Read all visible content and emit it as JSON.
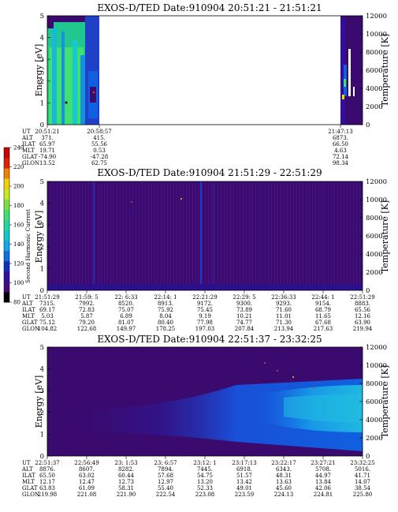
{
  "colors": {
    "background": "#3a0a6e",
    "cold": [
      "#3a0a6e",
      "#2c0f8c",
      "#1c3ac8",
      "#1060e0",
      "#12a0e8",
      "#18c8d0",
      "#20d890",
      "#40e070"
    ],
    "colorbar": [
      "#000000",
      "#4a0880",
      "#3010a0",
      "#1030c0",
      "#1070e0",
      "#10a8e8",
      "#10c8c8",
      "#20d8a0",
      "#40e070",
      "#80e040",
      "#c8e820",
      "#f0d000",
      "#f08000",
      "#e02000",
      "#c80000"
    ]
  },
  "colorbar": {
    "label": "Second Harmonic Current",
    "ticks": [
      "80",
      "100",
      "120",
      "140",
      "160",
      "180",
      "200",
      "220",
      "240"
    ]
  },
  "panels": [
    {
      "title": "EXOS-D/TED   Date:910904  20:51:21 - 21:51:21",
      "ylabel": "Energy [eV]",
      "y2label": "Temperature [K]",
      "eph_labels": [
        "UT",
        "ALT",
        "ILAT",
        "MLT",
        "GLAT",
        "GLON"
      ],
      "eph": [
        [
          "20:51:21",
          "371.",
          "65.97",
          "19.71",
          "-74.90",
          "13.52"
        ],
        [
          "20:58:57",
          "415.",
          "55.56",
          "0.53",
          "-47.28",
          "62.75"
        ],
        [
          "21:47:13",
          "6873.",
          "66.50",
          "4.63",
          "72.14",
          "98.34"
        ]
      ]
    },
    {
      "title": "EXOS-D/TED   Date:910904  21:51:29 - 22:51:29",
      "ylabel": "Energy [eV]",
      "y2label": "Temperature [K]",
      "eph_labels": [
        "UT",
        "ALT",
        "ILAT",
        "MLT",
        "GLAT",
        "GLON"
      ],
      "eph": [
        [
          "21:51:29",
          "7315.",
          "69.17",
          "5.03",
          "75.12",
          "104.82"
        ],
        [
          "21:59: 5",
          "7992.",
          "72.83",
          "5.87",
          "79.20",
          "122.68"
        ],
        [
          "22: 6:33",
          "8520.",
          "75.07",
          "6.89",
          "81.07",
          "149.97"
        ],
        [
          "22:14: 1",
          "8913.",
          "75.92",
          "8.04",
          "80.40",
          "178.25"
        ],
        [
          "22:21:29",
          "9172.",
          "75.45",
          "9.19",
          "77.98",
          "197.03"
        ],
        [
          "22:29: 5",
          "9300.",
          "73.89",
          "10.21",
          "74.77",
          "207.84"
        ],
        [
          "22:36:33",
          "9293.",
          "71.60",
          "11.01",
          "71.30",
          "213.94"
        ],
        [
          "22:44: 1",
          "9154.",
          "68.79",
          "11.65",
          "67.68",
          "217.63"
        ],
        [
          "22:51:29",
          "8883.",
          "65.56",
          "12.16",
          "63.90",
          "219.94"
        ]
      ]
    },
    {
      "title": "EXOS-D/TED   Date:910904  22:51:37 - 23:32:25",
      "ylabel": "Energy [eV]",
      "y2label": "Temperature [K]",
      "eph_labels": [
        "UT",
        "ALT",
        "ILAT",
        "MLT",
        "GLAT",
        "GLON"
      ],
      "eph": [
        [
          "22:51:37",
          "8876.",
          "65.50",
          "12.17",
          "63.83",
          "219.98"
        ],
        [
          "22:56:49",
          "8607.",
          "63.02",
          "12.47",
          "61.09",
          "221.08"
        ],
        [
          "23: 1:53",
          "8282.",
          "60.44",
          "12.73",
          "58.31",
          "221.90"
        ],
        [
          "23: 6:57",
          "7894.",
          "57.68",
          "12.97",
          "55.40",
          "222.54"
        ],
        [
          "23:12: 1",
          "7445.",
          "54.75",
          "13.20",
          "52.33",
          "223.08"
        ],
        [
          "23:17:13",
          "6918.",
          "51.57",
          "13.42",
          "49.01",
          "223.59"
        ],
        [
          "23:22:17",
          "6343.",
          "48.31",
          "13.63",
          "45.60",
          "224.13"
        ],
        [
          "23:27:21",
          "5708.",
          "44.97",
          "13.84",
          "42.06",
          "224.81"
        ],
        [
          "23:32:25",
          "5016.",
          "41.71",
          "14.07",
          "38.54",
          "225.80"
        ]
      ]
    }
  ],
  "chart_data": [
    {
      "type": "heatmap",
      "title": "EXOS-D/TED   Date:910904  20:51:21 - 21:51:21",
      "ylabel": "Energy [eV]",
      "y2label": "Temperature [K]",
      "ylim": [
        0,
        5
      ],
      "y2lim": [
        0,
        12000
      ],
      "yticks": [
        0,
        1,
        2,
        3,
        4,
        5
      ],
      "y2ticks": [
        0,
        2000,
        4000,
        6000,
        8000,
        10000,
        12000
      ],
      "x_range": [
        "20:51:21",
        "21:51:21"
      ],
      "data_segments": [
        [
          "20:51:21",
          "20:58:57"
        ],
        [
          "21:47:13",
          "21:51:21"
        ]
      ],
      "colorbar_label": "Second Harmonic Current",
      "colorbar_range": [
        80,
        240
      ]
    },
    {
      "type": "heatmap",
      "title": "EXOS-D/TED   Date:910904  21:51:29 - 22:51:29",
      "ylabel": "Energy [eV]",
      "y2label": "Temperature [K]",
      "ylim": [
        0,
        5
      ],
      "y2lim": [
        0,
        12000
      ],
      "yticks": [
        0,
        1,
        2,
        3,
        4,
        5
      ],
      "y2ticks": [
        0,
        2000,
        4000,
        6000,
        8000,
        10000,
        12000
      ],
      "x_range": [
        "21:51:29",
        "22:51:29"
      ]
    },
    {
      "type": "heatmap",
      "title": "EXOS-D/TED   Date:910904  22:51:37 - 23:32:25",
      "ylabel": "Energy [eV]",
      "y2label": "Temperature [K]",
      "ylim": [
        0,
        5
      ],
      "y2lim": [
        0,
        12000
      ],
      "yticks": [
        0,
        1,
        2,
        3,
        4,
        5
      ],
      "y2ticks": [
        0,
        2000,
        4000,
        6000,
        8000,
        10000,
        12000
      ],
      "x_range": [
        "22:51:37",
        "23:32:25"
      ]
    }
  ]
}
